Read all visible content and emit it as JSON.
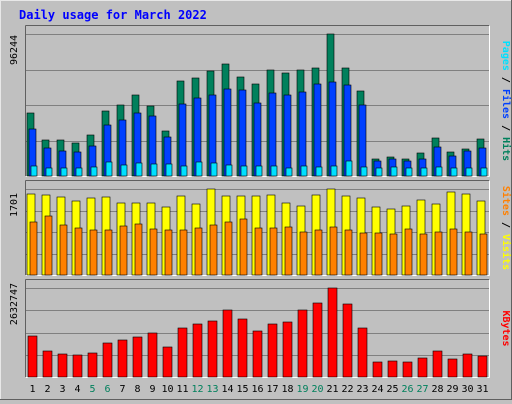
{
  "chart_data": {
    "type": "bar",
    "title": "Daily usage for March 2022",
    "categories": [
      "1",
      "2",
      "3",
      "4",
      "5",
      "6",
      "7",
      "8",
      "9",
      "10",
      "11",
      "12",
      "13",
      "14",
      "15",
      "16",
      "17",
      "18",
      "19",
      "20",
      "21",
      "22",
      "23",
      "24",
      "25",
      "26",
      "27",
      "28",
      "29",
      "30",
      "31"
    ],
    "weekend_days": [
      "5",
      "6",
      "12",
      "13",
      "19",
      "20",
      "26",
      "27"
    ],
    "colors": {
      "hits": "#00805c",
      "files": "#0040ff",
      "pages": "#00e0ff",
      "visits": "#ffff00",
      "sites": "#ff8000",
      "kbytes": "#ff0000",
      "title": "#0000ff",
      "weekend": "#00805c",
      "weekday": "#000000",
      "background": "#c0c0c0"
    },
    "panels": [
      {
        "id": "hits-files-pages",
        "max_label": "96244",
        "ymax": 96244,
        "legend": [
          {
            "text": "Pages",
            "color": "#00e0ff"
          },
          {
            "text": " / ",
            "color": "#000000"
          },
          {
            "text": "Files",
            "color": "#0040ff"
          },
          {
            "text": " / ",
            "color": "#000000"
          },
          {
            "text": "Hits",
            "color": "#00805c"
          }
        ],
        "series": [
          {
            "name": "Hits",
            "color": "#00805c",
            "values": [
              42800,
              24500,
              24500,
              22500,
              28000,
              43800,
              48300,
              54800,
              47700,
              30400,
              64700,
              66200,
              70900,
              75600,
              67000,
              62300,
              71700,
              70000,
              71800,
              73200,
              96244,
              73200,
              57600,
              11300,
              12600,
              11800,
              15700,
              25700,
              16000,
              18600,
              24800
            ]
          },
          {
            "name": "Files",
            "color": "#0040ff",
            "values": [
              31900,
              19200,
              17000,
              16200,
              20000,
              34800,
              37800,
              42800,
              40800,
              26300,
              48900,
              52600,
              54800,
              58800,
              58600,
              49700,
              56200,
              54600,
              56700,
              62100,
              63900,
              61600,
              48300,
              10500,
              11200,
              10400,
              11800,
              19400,
              13400,
              16800,
              18800
            ]
          },
          {
            "name": "Pages",
            "color": "#00e0ff",
            "values": [
              7100,
              5700,
              5700,
              5700,
              6200,
              9600,
              7200,
              9000,
              8300,
              8400,
              7000,
              9700,
              8500,
              7700,
              7100,
              7100,
              6900,
              5700,
              6600,
              6100,
              7100,
              10400,
              5800,
              5400,
              6000,
              5400,
              5400,
              6000,
              5500,
              5700,
              5400
            ]
          }
        ]
      },
      {
        "id": "visits-sites",
        "max_label": "1701",
        "ymax": 1701,
        "legend": [
          {
            "text": "Sites",
            "color": "#ff8000"
          },
          {
            "text": " / ",
            "color": "#000000"
          },
          {
            "text": "Visits",
            "color": "#ffff00"
          }
        ],
        "series": [
          {
            "name": "Visits",
            "color": "#ffff00",
            "values": [
              1600,
              1585,
              1545,
              1455,
              1515,
              1545,
              1430,
              1415,
              1430,
              1345,
              1570,
              1395,
              1700,
              1555,
              1555,
              1555,
              1585,
              1415,
              1370,
              1585,
              1701,
              1570,
              1515,
              1345,
              1300,
              1370,
              1475,
              1400,
              1640,
              1600,
              1460
            ]
          },
          {
            "name": "Sites",
            "color": "#ff8000",
            "values": [
              1045,
              1170,
              985,
              935,
              890,
              885,
              965,
              1000,
              910,
              890,
              895,
              935,
              985,
              1040,
              1100,
              930,
              930,
              955,
              855,
              890,
              945,
              895,
              825,
              830,
              815,
              900,
              820,
              845,
              900,
              845,
              810
            ]
          }
        ]
      },
      {
        "id": "kbytes",
        "max_label": "2632747",
        "ymax": 2632747,
        "legend": [
          {
            "text": "KBytes",
            "color": "#ff0000"
          }
        ],
        "series": [
          {
            "name": "KBytes",
            "color": "#ff0000",
            "values": [
              1210000,
              756000,
              679000,
              640000,
              723000,
              997000,
              1090000,
              1180000,
              1300000,
              894000,
              1460000,
              1570000,
              1670000,
              1970000,
              1720000,
              1370000,
              1560000,
              1630000,
              1980000,
              2200000,
              2632747,
              2150000,
              1450000,
              430000,
              477000,
              430000,
              569000,
              759000,
              519000,
              694000,
              627000
            ]
          }
        ]
      }
    ]
  }
}
